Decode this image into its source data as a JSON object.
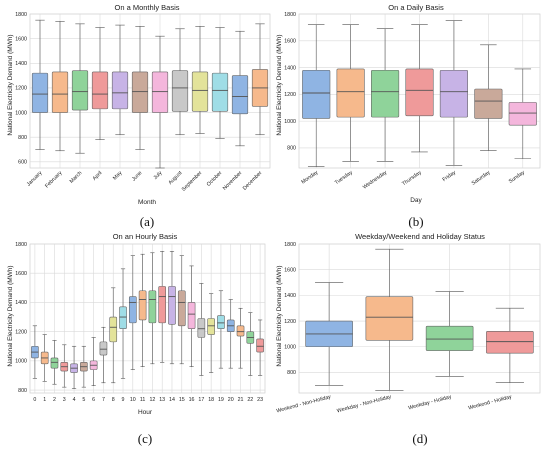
{
  "panel_labels": [
    "(a)",
    "(b)",
    "(c)",
    "(d)"
  ],
  "chart_data": [
    {
      "type": "boxplot",
      "title": "On a Monthly Basis",
      "xlabel": "Month",
      "ylabel": "National Electricity Demand (MWh)",
      "ylim": [
        550,
        1800
      ],
      "yticks": [
        600,
        800,
        1000,
        1200,
        1400,
        1600,
        1800
      ],
      "grid": true,
      "categories": [
        "January",
        "February",
        "March",
        "April",
        "May",
        "June",
        "July",
        "August",
        "September",
        "October",
        "November",
        "December"
      ],
      "colors": [
        "#8fb4e3",
        "#f6b98c",
        "#8fd39a",
        "#ef9a9a",
        "#c7b3e6",
        "#c9a99a",
        "#f4b6dc",
        "#c8c8c8",
        "#e3e39a",
        "#9fdde6",
        "#8fb4e3",
        "#f6b98c"
      ],
      "boxes": [
        {
          "min": 700,
          "q1": 1000,
          "median": 1150,
          "q3": 1320,
          "max": 1750
        },
        {
          "min": 690,
          "q1": 1000,
          "median": 1150,
          "q3": 1330,
          "max": 1740
        },
        {
          "min": 670,
          "q1": 1020,
          "median": 1170,
          "q3": 1340,
          "max": 1720
        },
        {
          "min": 780,
          "q1": 1030,
          "median": 1150,
          "q3": 1330,
          "max": 1690
        },
        {
          "min": 820,
          "q1": 1030,
          "median": 1160,
          "q3": 1330,
          "max": 1710
        },
        {
          "min": 700,
          "q1": 1000,
          "median": 1170,
          "q3": 1330,
          "max": 1700
        },
        {
          "min": 550,
          "q1": 1000,
          "median": 1170,
          "q3": 1330,
          "max": 1620
        },
        {
          "min": 820,
          "q1": 1010,
          "median": 1200,
          "q3": 1340,
          "max": 1680
        },
        {
          "min": 830,
          "q1": 1010,
          "median": 1180,
          "q3": 1330,
          "max": 1700
        },
        {
          "min": 790,
          "q1": 1010,
          "median": 1180,
          "q3": 1320,
          "max": 1690
        },
        {
          "min": 730,
          "q1": 990,
          "median": 1130,
          "q3": 1300,
          "max": 1660
        },
        {
          "min": 820,
          "q1": 1050,
          "median": 1200,
          "q3": 1350,
          "max": 1720
        }
      ]
    },
    {
      "type": "boxplot",
      "title": "On a Daily Basis",
      "xlabel": "Day",
      "ylabel": "National Electricity Demand (MWh)",
      "ylim": [
        650,
        1800
      ],
      "yticks": [
        800,
        1000,
        1200,
        1400,
        1600,
        1800
      ],
      "grid": true,
      "categories": [
        "Monday",
        "Tuesday",
        "Wednesday",
        "Thursday",
        "Friday",
        "Saturday",
        "Sunday"
      ],
      "colors": [
        "#8fb4e3",
        "#f6b98c",
        "#8fd39a",
        "#ef9a9a",
        "#c7b3e6",
        "#c9a99a",
        "#f4b6dc"
      ],
      "boxes": [
        {
          "min": 660,
          "q1": 1020,
          "median": 1210,
          "q3": 1380,
          "max": 1720
        },
        {
          "min": 700,
          "q1": 1030,
          "median": 1220,
          "q3": 1390,
          "max": 1720
        },
        {
          "min": 700,
          "q1": 1030,
          "median": 1220,
          "q3": 1380,
          "max": 1690
        },
        {
          "min": 770,
          "q1": 1040,
          "median": 1230,
          "q3": 1390,
          "max": 1720
        },
        {
          "min": 670,
          "q1": 1030,
          "median": 1220,
          "q3": 1380,
          "max": 1750
        },
        {
          "min": 780,
          "q1": 1020,
          "median": 1150,
          "q3": 1240,
          "max": 1570
        },
        {
          "min": 720,
          "q1": 970,
          "median": 1060,
          "q3": 1140,
          "max": 1390
        }
      ]
    },
    {
      "type": "boxplot",
      "title": "On an Hourly Basis",
      "xlabel": "Hour",
      "ylabel": "National Electricity Demand (MWh)",
      "ylim": [
        780,
        1800
      ],
      "yticks": [
        800,
        1000,
        1200,
        1400,
        1600,
        1800
      ],
      "grid": true,
      "categories": [
        "0",
        "1",
        "2",
        "3",
        "4",
        "5",
        "6",
        "7",
        "8",
        "9",
        "10",
        "11",
        "12",
        "13",
        "14",
        "15",
        "16",
        "17",
        "18",
        "19",
        "20",
        "21",
        "22",
        "23"
      ],
      "colors": [
        "#8fb4e3",
        "#f6b98c",
        "#8fd39a",
        "#ef9a9a",
        "#c7b3e6",
        "#c9a99a",
        "#f4b6dc",
        "#c8c8c8",
        "#e3e39a",
        "#9fdde6",
        "#8fb4e3",
        "#f6b98c",
        "#8fd39a",
        "#ef9a9a",
        "#c7b3e6",
        "#c9a99a",
        "#f4b6dc",
        "#c8c8c8",
        "#e3e39a",
        "#9fdde6",
        "#8fb4e3",
        "#f6b98c",
        "#8fd39a",
        "#ef9a9a"
      ],
      "boxes": [
        {
          "min": 880,
          "q1": 1020,
          "median": 1060,
          "q3": 1100,
          "max": 1240
        },
        {
          "min": 860,
          "q1": 980,
          "median": 1020,
          "q3": 1060,
          "max": 1180
        },
        {
          "min": 840,
          "q1": 950,
          "median": 990,
          "q3": 1020,
          "max": 1140
        },
        {
          "min": 820,
          "q1": 930,
          "median": 960,
          "q3": 990,
          "max": 1110
        },
        {
          "min": 810,
          "q1": 920,
          "median": 950,
          "q3": 980,
          "max": 1100
        },
        {
          "min": 820,
          "q1": 930,
          "median": 960,
          "q3": 990,
          "max": 1100
        },
        {
          "min": 830,
          "q1": 940,
          "median": 970,
          "q3": 1000,
          "max": 1160
        },
        {
          "min": 850,
          "q1": 1040,
          "median": 1080,
          "q3": 1130,
          "max": 1230
        },
        {
          "min": 850,
          "q1": 1130,
          "median": 1230,
          "q3": 1300,
          "max": 1500
        },
        {
          "min": 880,
          "q1": 1220,
          "median": 1300,
          "q3": 1370,
          "max": 1630
        },
        {
          "min": 940,
          "q1": 1260,
          "median": 1400,
          "q3": 1440,
          "max": 1720
        },
        {
          "min": 960,
          "q1": 1280,
          "median": 1420,
          "q3": 1480,
          "max": 1730
        },
        {
          "min": 980,
          "q1": 1260,
          "median": 1420,
          "q3": 1480,
          "max": 1740
        },
        {
          "min": 990,
          "q1": 1260,
          "median": 1440,
          "q3": 1510,
          "max": 1750
        },
        {
          "min": 980,
          "q1": 1250,
          "median": 1440,
          "q3": 1510,
          "max": 1750
        },
        {
          "min": 980,
          "q1": 1240,
          "median": 1400,
          "q3": 1480,
          "max": 1720
        },
        {
          "min": 960,
          "q1": 1220,
          "median": 1320,
          "q3": 1400,
          "max": 1650
        },
        {
          "min": 900,
          "q1": 1160,
          "median": 1220,
          "q3": 1290,
          "max": 1530
        },
        {
          "min": 920,
          "q1": 1180,
          "median": 1240,
          "q3": 1290,
          "max": 1460
        },
        {
          "min": 950,
          "q1": 1220,
          "median": 1260,
          "q3": 1310,
          "max": 1480
        },
        {
          "min": 950,
          "q1": 1200,
          "median": 1240,
          "q3": 1280,
          "max": 1420
        },
        {
          "min": 950,
          "q1": 1170,
          "median": 1200,
          "q3": 1240,
          "max": 1360
        },
        {
          "min": 900,
          "q1": 1120,
          "median": 1160,
          "q3": 1200,
          "max": 1330
        },
        {
          "min": 900,
          "q1": 1060,
          "median": 1100,
          "q3": 1150,
          "max": 1280
        }
      ]
    },
    {
      "type": "boxplot",
      "title": "Weekday/Weekend and Holiday Status",
      "xlabel": "",
      "ylabel": "National Electricity Demand (MWh)",
      "ylim": [
        640,
        1800
      ],
      "yticks": [
        800,
        1000,
        1200,
        1400,
        1600,
        1800
      ],
      "grid": true,
      "categories": [
        "Weekend - Non-Holiday",
        "Weekday - Non-Holiday",
        "Weekday - Holiday",
        "Weekend - Holiday"
      ],
      "colors": [
        "#8fb4e3",
        "#f6b98c",
        "#8fd39a",
        "#ef9a9a"
      ],
      "boxes": [
        {
          "min": 700,
          "q1": 1000,
          "median": 1100,
          "q3": 1200,
          "max": 1500
        },
        {
          "min": 660,
          "q1": 1050,
          "median": 1230,
          "q3": 1390,
          "max": 1760
        },
        {
          "min": 770,
          "q1": 970,
          "median": 1060,
          "q3": 1160,
          "max": 1430
        },
        {
          "min": 720,
          "q1": 950,
          "median": 1040,
          "q3": 1120,
          "max": 1300
        }
      ]
    }
  ]
}
